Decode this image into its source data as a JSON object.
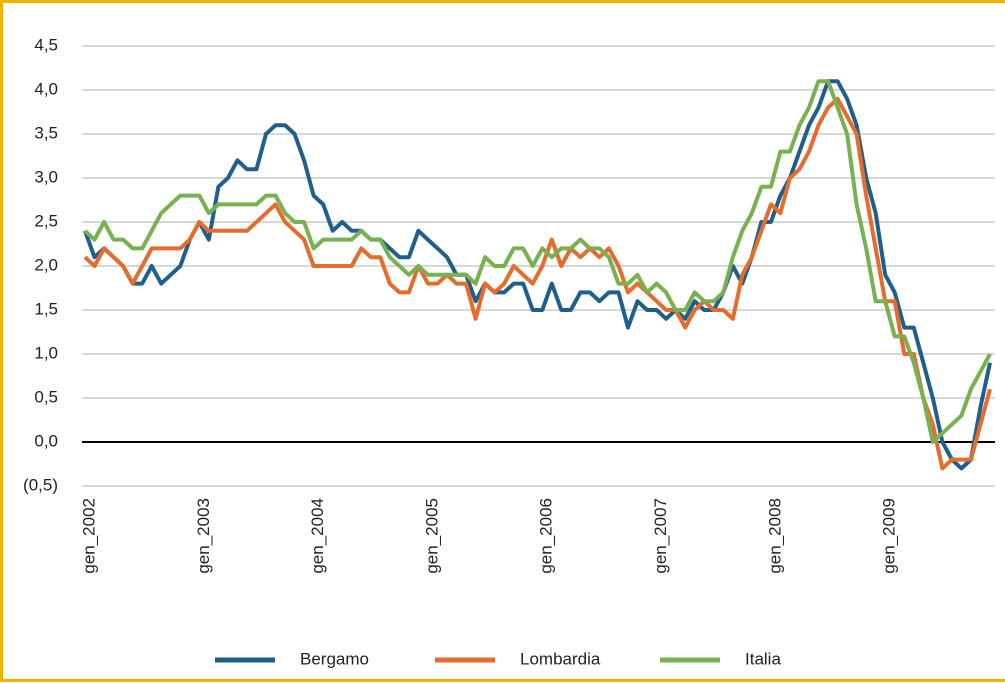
{
  "chart_data": {
    "type": "line",
    "categories": [
      "gen_2002",
      null,
      null,
      null,
      null,
      null,
      null,
      null,
      null,
      null,
      null,
      null,
      "gen_2003",
      null,
      null,
      null,
      null,
      null,
      null,
      null,
      null,
      null,
      null,
      null,
      "gen_2004",
      null,
      null,
      null,
      null,
      null,
      null,
      null,
      null,
      null,
      null,
      null,
      "gen_2005",
      null,
      null,
      null,
      null,
      null,
      null,
      null,
      null,
      null,
      null,
      null,
      "gen_2006",
      null,
      null,
      null,
      null,
      null,
      null,
      null,
      null,
      null,
      null,
      null,
      "gen_2007",
      null,
      null,
      null,
      null,
      null,
      null,
      null,
      null,
      null,
      null,
      null,
      "gen_2008",
      null,
      null,
      null,
      null,
      null,
      null,
      null,
      null,
      null,
      null,
      null,
      "gen_2009",
      null,
      null,
      null,
      null,
      null,
      null,
      null,
      null,
      null,
      null,
      null
    ],
    "series": [
      {
        "name": "Bergamo",
        "color": "#1f5f8b",
        "values": [
          2.4,
          2.1,
          2.2,
          2.1,
          2.0,
          1.8,
          1.8,
          2.0,
          1.8,
          1.9,
          2.0,
          2.3,
          2.5,
          2.3,
          2.9,
          3.0,
          3.2,
          3.1,
          3.1,
          3.5,
          3.6,
          3.6,
          3.5,
          3.2,
          2.8,
          2.7,
          2.4,
          2.5,
          2.4,
          2.4,
          2.3,
          2.3,
          2.2,
          2.1,
          2.1,
          2.4,
          2.3,
          2.2,
          2.1,
          1.9,
          1.9,
          1.6,
          1.8,
          1.7,
          1.7,
          1.8,
          1.8,
          1.5,
          1.5,
          1.8,
          1.5,
          1.5,
          1.7,
          1.7,
          1.6,
          1.7,
          1.7,
          1.3,
          1.6,
          1.5,
          1.5,
          1.4,
          1.5,
          1.4,
          1.6,
          1.5,
          1.5,
          1.7,
          2.0,
          1.8,
          2.1,
          2.5,
          2.5,
          2.8,
          3.0,
          3.3,
          3.6,
          3.8,
          4.1,
          4.1,
          3.9,
          3.6,
          3.0,
          2.6,
          1.9,
          1.7,
          1.3,
          1.3,
          0.9,
          0.5,
          0.0,
          -0.2,
          -0.3,
          -0.2,
          0.4,
          0.9
        ]
      },
      {
        "name": "Lombardia",
        "color": "#e46c2c",
        "values": [
          2.1,
          2.0,
          2.2,
          2.1,
          2.0,
          1.8,
          2.0,
          2.2,
          2.2,
          2.2,
          2.2,
          2.3,
          2.5,
          2.4,
          2.4,
          2.4,
          2.4,
          2.4,
          2.5,
          2.6,
          2.7,
          2.5,
          2.4,
          2.3,
          2.0,
          2.0,
          2.0,
          2.0,
          2.0,
          2.2,
          2.1,
          2.1,
          1.8,
          1.7,
          1.7,
          2.0,
          1.8,
          1.8,
          1.9,
          1.8,
          1.8,
          1.4,
          1.8,
          1.7,
          1.8,
          2.0,
          1.9,
          1.8,
          2.0,
          2.3,
          2.0,
          2.2,
          2.1,
          2.2,
          2.1,
          2.2,
          2.0,
          1.7,
          1.8,
          1.7,
          1.6,
          1.5,
          1.5,
          1.3,
          1.5,
          1.6,
          1.5,
          1.5,
          1.4,
          1.9,
          2.1,
          2.4,
          2.7,
          2.6,
          3.0,
          3.1,
          3.3,
          3.6,
          3.8,
          3.9,
          3.7,
          3.5,
          2.8,
          2.2,
          1.6,
          1.6,
          1.0,
          1.0,
          0.5,
          0.2,
          -0.3,
          -0.2,
          -0.2,
          -0.2,
          0.2,
          0.6
        ]
      },
      {
        "name": "Italia",
        "color": "#77b150",
        "values": [
          2.4,
          2.3,
          2.5,
          2.3,
          2.3,
          2.2,
          2.2,
          2.4,
          2.6,
          2.7,
          2.8,
          2.8,
          2.8,
          2.6,
          2.7,
          2.7,
          2.7,
          2.7,
          2.7,
          2.8,
          2.8,
          2.6,
          2.5,
          2.5,
          2.2,
          2.3,
          2.3,
          2.3,
          2.3,
          2.4,
          2.3,
          2.3,
          2.1,
          2.0,
          1.9,
          2.0,
          1.9,
          1.9,
          1.9,
          1.9,
          1.9,
          1.8,
          2.1,
          2.0,
          2.0,
          2.2,
          2.2,
          2.0,
          2.2,
          2.1,
          2.2,
          2.2,
          2.3,
          2.2,
          2.2,
          2.1,
          1.8,
          1.8,
          1.9,
          1.7,
          1.8,
          1.7,
          1.5,
          1.5,
          1.7,
          1.6,
          1.6,
          1.7,
          2.1,
          2.4,
          2.6,
          2.9,
          2.9,
          3.3,
          3.3,
          3.6,
          3.8,
          4.1,
          4.1,
          3.8,
          3.5,
          2.7,
          2.2,
          1.6,
          1.6,
          1.2,
          1.2,
          0.9,
          0.5,
          0.0,
          0.1,
          0.2,
          0.3,
          0.6,
          0.8,
          1.0
        ]
      }
    ],
    "ylim": [
      -0.5,
      4.5
    ],
    "yticks": [
      {
        "value": -0.5,
        "label": "(0,5)"
      },
      {
        "value": 0,
        "label": "0,0"
      },
      {
        "value": 0.5,
        "label": "0,5"
      },
      {
        "value": 1,
        "label": "1,0"
      },
      {
        "value": 1.5,
        "label": "1,5"
      },
      {
        "value": 2,
        "label": "2,0"
      },
      {
        "value": 2.5,
        "label": "2,5"
      },
      {
        "value": 3,
        "label": "3,0"
      },
      {
        "value": 3.5,
        "label": "3,5"
      },
      {
        "value": 4,
        "label": "4,0"
      },
      {
        "value": 4.5,
        "label": "4,5"
      }
    ],
    "grid": true,
    "legend": "bottom"
  }
}
